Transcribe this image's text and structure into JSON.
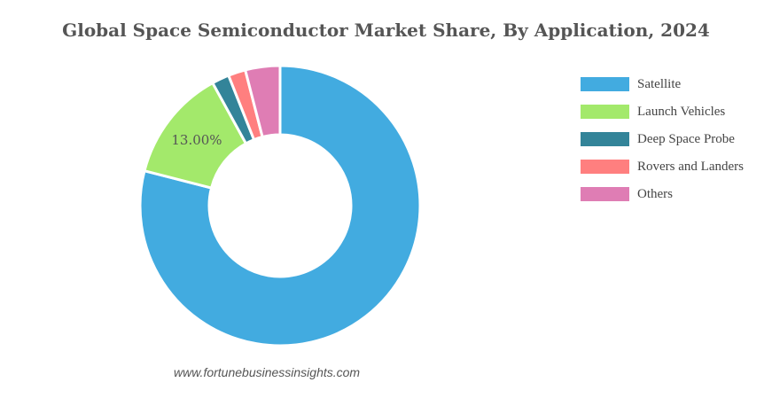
{
  "chart_data": {
    "type": "pie",
    "title": "Global Space Semiconductor Market Share, By Application, 2024",
    "categories": [
      "Satellite",
      "Launch Vehicles",
      "Deep Space Probe",
      "Rovers and Landers",
      "Others"
    ],
    "values": [
      79.0,
      13.0,
      2.0,
      2.0,
      4.0
    ],
    "colors": [
      "#42abe0",
      "#a3e96b",
      "#338499",
      "#ff7f7f",
      "#df7db4"
    ],
    "data_labels": [
      "",
      "13.00%",
      "",
      "",
      ""
    ],
    "legend_position": "right",
    "donut": true
  },
  "source": "www.fortunebusinessinsights.com"
}
